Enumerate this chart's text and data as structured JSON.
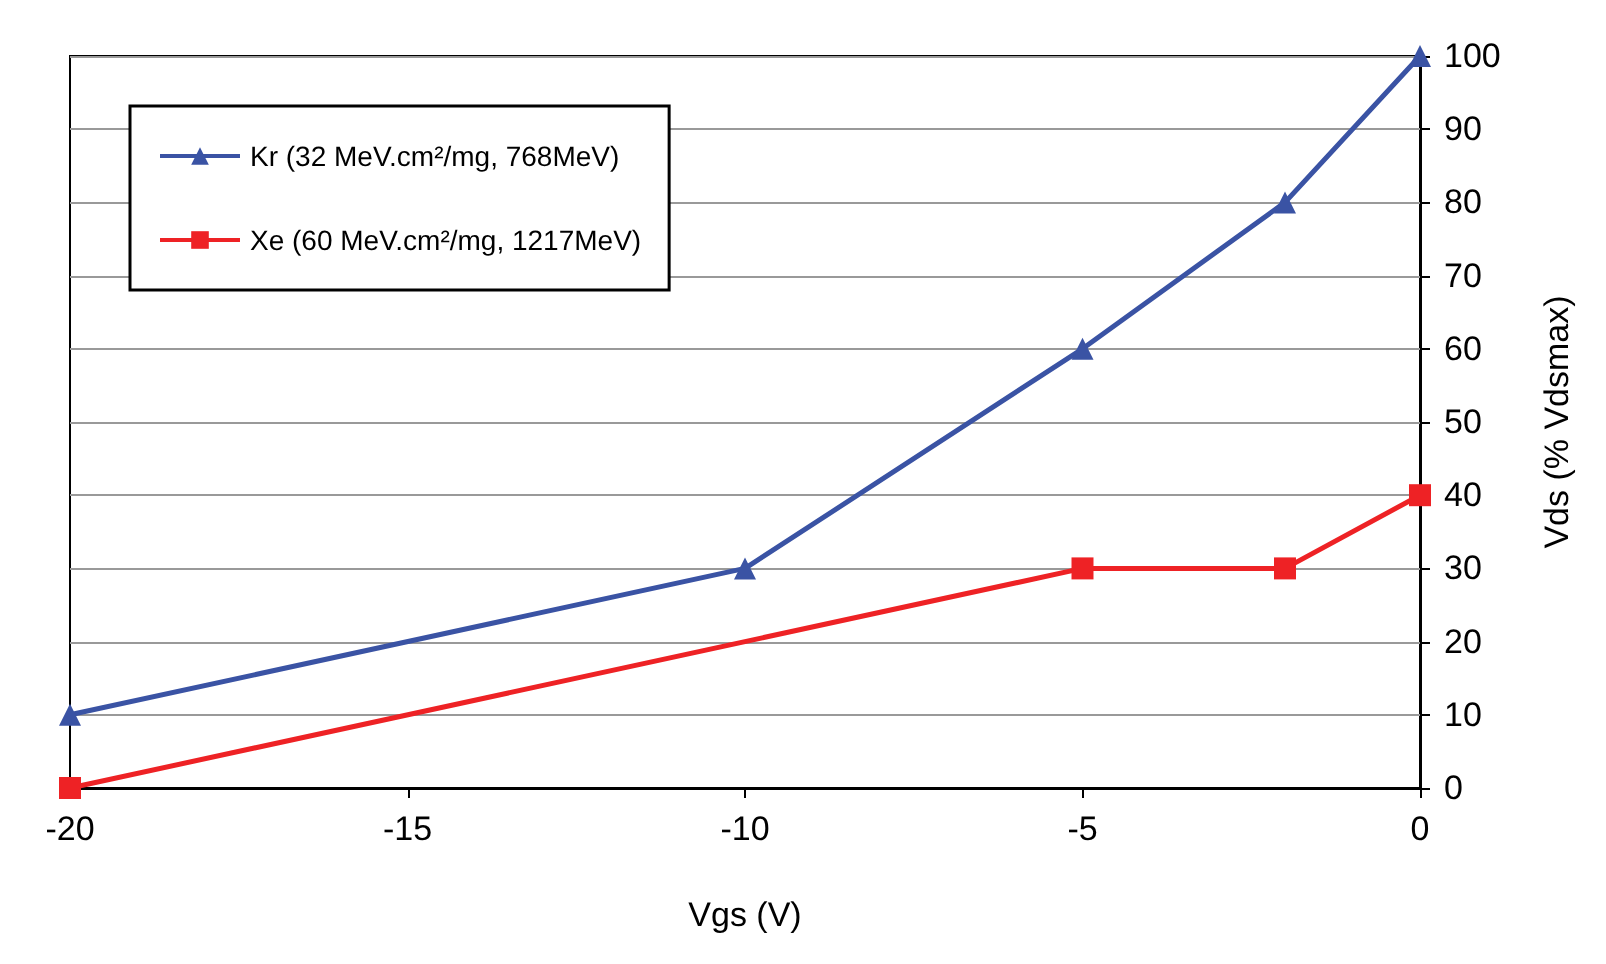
{
  "chart_data": {
    "type": "line",
    "xlabel": "Vgs (V)",
    "ylabel": "Vds (% Vdsmax)",
    "xlim": [
      -20,
      0
    ],
    "xticks": [
      -20,
      -15,
      -10,
      -5,
      0
    ],
    "ylim": [
      0,
      100
    ],
    "yticks": [
      0,
      10,
      20,
      30,
      40,
      50,
      60,
      70,
      80,
      90,
      100
    ],
    "grid": "y",
    "legend": "top left",
    "series": [
      {
        "name": "Kr (32 MeV.cm²/mg, 768MeV)",
        "color": "#3a53a4",
        "marker": "triangle",
        "x": [
          -20,
          -10,
          -5,
          -2,
          0
        ],
        "values": [
          10,
          30,
          60,
          80,
          100
        ]
      },
      {
        "name": "Xe (60 MeV.cm²/mg, 1217MeV)",
        "color": "#ee2225",
        "marker": "square",
        "x": [
          -20,
          -5,
          -2,
          0
        ],
        "values": [
          0,
          30,
          30,
          40
        ]
      }
    ]
  }
}
